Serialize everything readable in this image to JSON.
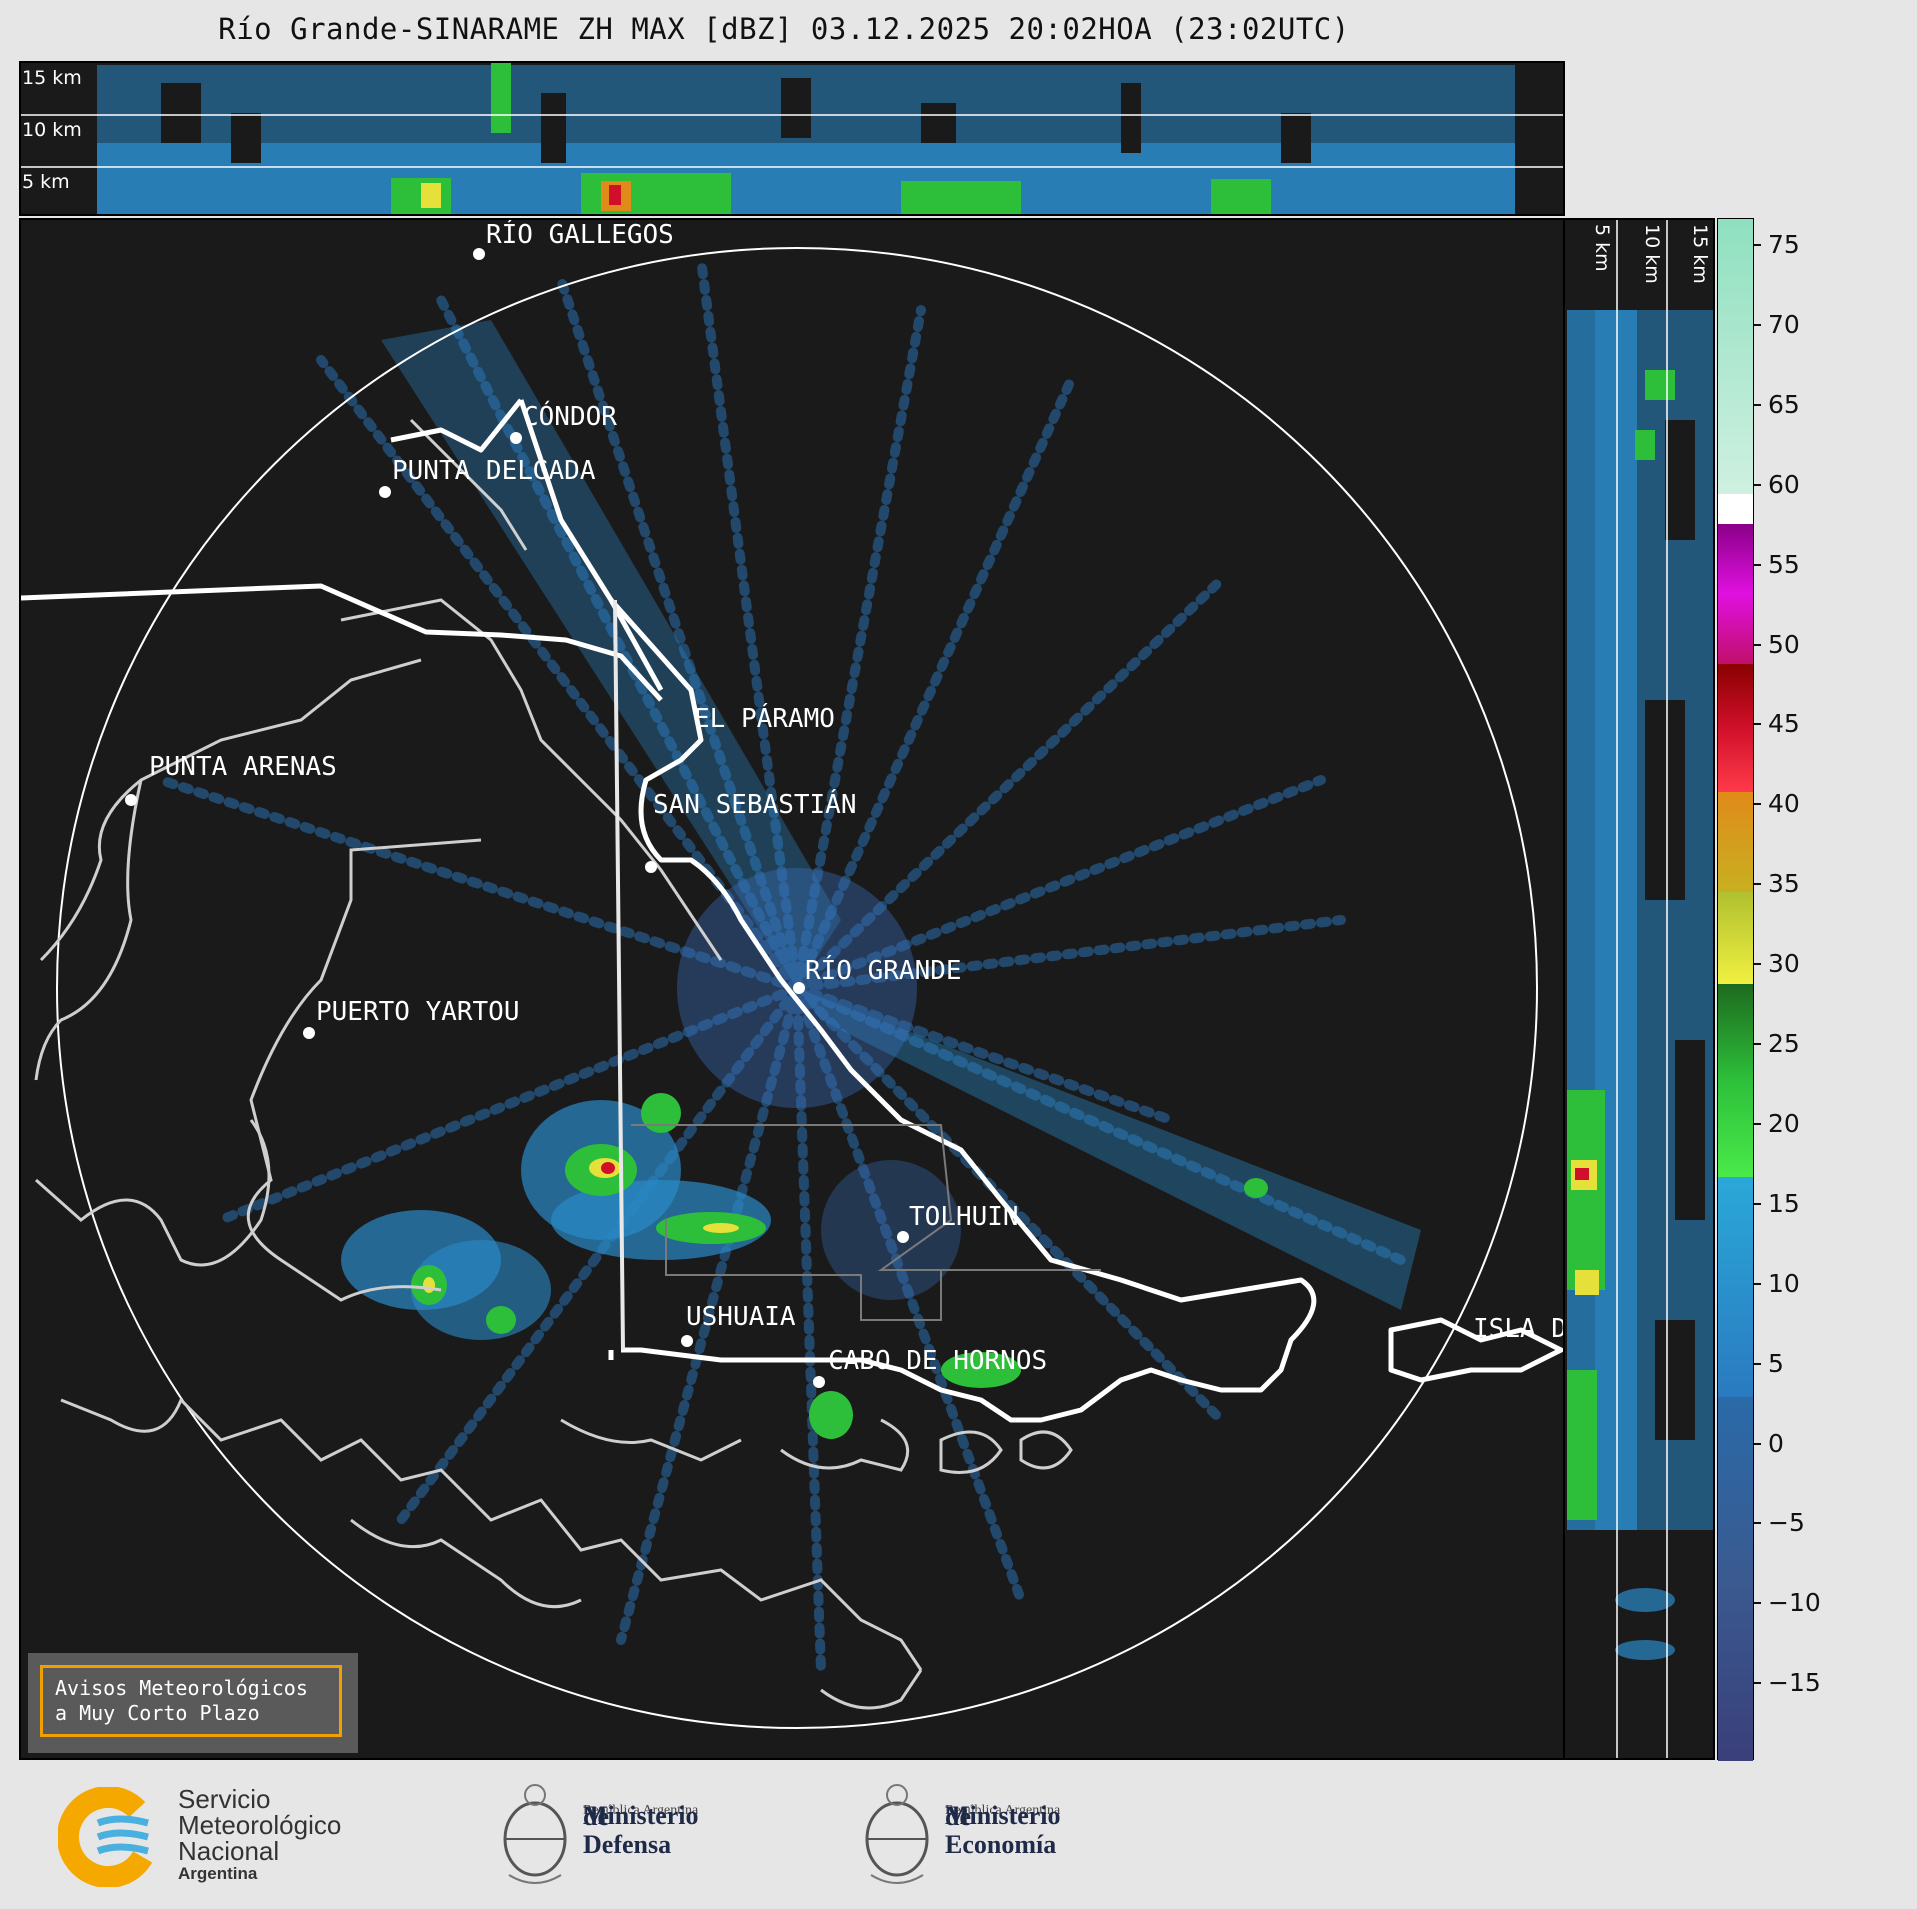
{
  "title": "Río Grande-SINARAME ZH MAX [dBZ] 03.12.2025 20:02HOA (23:02UTC)",
  "top_section": {
    "km_labels": [
      "15 km",
      "10 km",
      "5 km"
    ]
  },
  "side_section": {
    "km_labels": [
      "5 km",
      "10 km",
      "15 km"
    ]
  },
  "colorbar": {
    "ticks": [
      "75",
      "70",
      "65",
      "60",
      "55",
      "50",
      "45",
      "40",
      "35",
      "30",
      "25",
      "20",
      "15",
      "10",
      "5",
      "0",
      "−5",
      "−10",
      "−15"
    ],
    "colors": {
      "cold": "#3a3f7a",
      "blue": "#2a8ac8",
      "green": "#2dbf3a",
      "yellow": "#e6e03a",
      "orange": "#e08a1a",
      "red": "#d0102a",
      "magenta": "#d020c0",
      "white": "#ffffff",
      "mint": "#8fe0c0"
    }
  },
  "cities": {
    "rio_gallegos": "RÍO GALLEGOS",
    "condor": "CÓNDOR",
    "punta_delgada": "PUNTA DELGADA",
    "el_paramo": "EL PÁRAMO",
    "punta_arenas": "PUNTA ARENAS",
    "san_sebastian": "SAN SEBASTIÁN",
    "rio_grande": "RÍO GRANDE",
    "puerto_yartou": "PUERTO YARTOU",
    "tolhuin": "TOLHUIN",
    "ushuaia": "USHUAIA",
    "cabo_de_hornos": "CABO DE HORNOS",
    "isla_edge": "ISLA D"
  },
  "warning": {
    "line1": "Avisos Meteorológicos",
    "line2": "a Muy Corto Plazo"
  },
  "logos": {
    "smn": {
      "line1": "Servicio",
      "line2": "Meteorológico",
      "line3": "Nacional",
      "line4": "Argentina"
    },
    "defensa": {
      "line1": "Ministerio",
      "line2": "de Defensa",
      "line3": "República Argentina"
    },
    "economia": {
      "line1": "Ministerio",
      "line2": "de Economía",
      "line3": "República Argentina"
    }
  }
}
